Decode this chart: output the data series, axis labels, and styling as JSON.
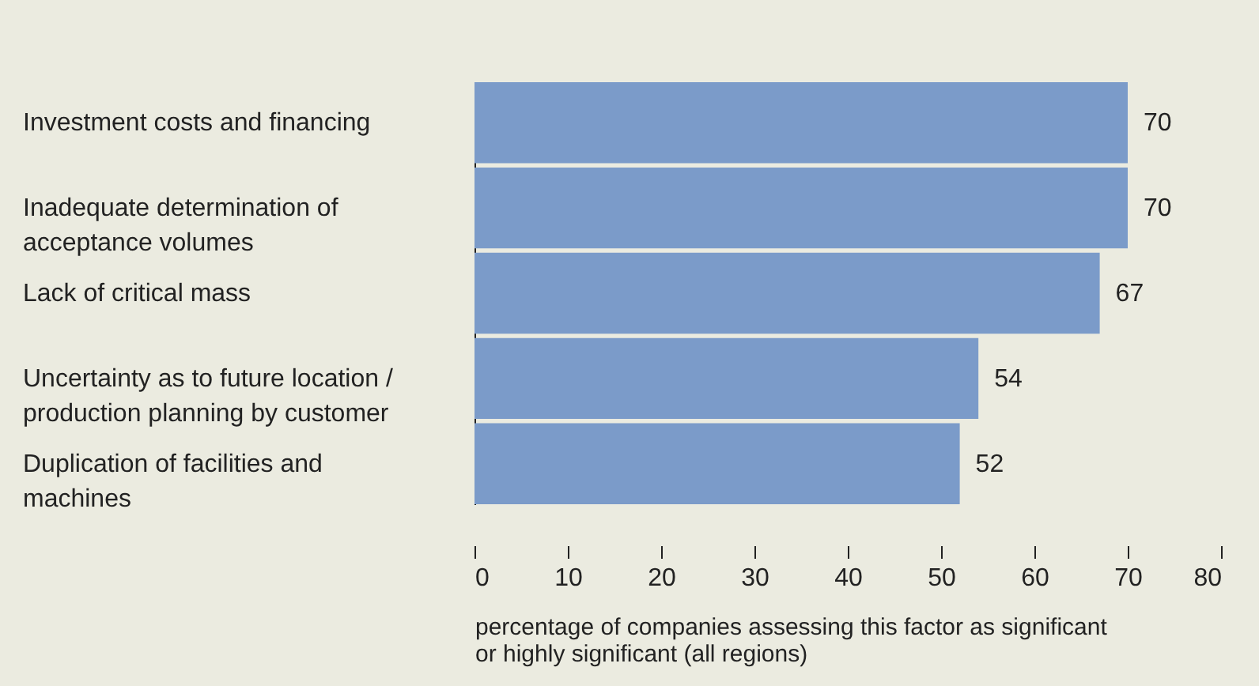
{
  "chart_data": {
    "type": "bar",
    "orientation": "horizontal",
    "xlabel": "percentage of companies assessing this factor as significant or highly significant (all regions)",
    "categories": [
      "Investment costs and financing",
      "Inadequate determination of acceptance volumes",
      "Lack of critical mass",
      "Uncertainty as to future location / production planning by customer",
      "Duplication of facilities and machines"
    ],
    "values": [
      70,
      70,
      67,
      54,
      52
    ],
    "color": "#7b9bc9",
    "xlim": [
      0,
      80
    ],
    "xticks": [
      0,
      10,
      20,
      30,
      40,
      50,
      60,
      70,
      80
    ],
    "data_labels": true
  }
}
